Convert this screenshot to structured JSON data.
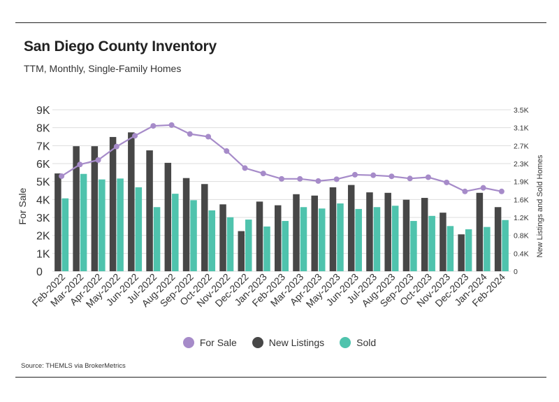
{
  "header": {
    "title": "San Diego County Inventory",
    "subtitle": "TTM, Monthly, Single-Family Homes"
  },
  "footer": {
    "source": "Source:  THEMLS via BrokerMetrics"
  },
  "colors": {
    "for_sale": "#a68bc9",
    "new_listings": "#474747",
    "sold": "#4fc3ad",
    "grid": "#dddddd"
  },
  "legend": [
    {
      "label": "For Sale",
      "color": "#a68bc9"
    },
    {
      "label": "New Listings",
      "color": "#474747"
    },
    {
      "label": "Sold",
      "color": "#4fc3ad"
    }
  ],
  "chart_data": {
    "type": "bar",
    "categories": [
      "Feb-2022",
      "Mar-2022",
      "Apr-2022",
      "May-2022",
      "Jun-2022",
      "Jul-2022",
      "Aug-2022",
      "Sep-2022",
      "Oct-2022",
      "Nov-2022",
      "Dec-2022",
      "Jan-2023",
      "Feb-2023",
      "Mar-2023",
      "Apr-2023",
      "May-2023",
      "Jun-2023",
      "Jul-2023",
      "Aug-2023",
      "Sep-2023",
      "Oct-2023",
      "Nov-2023",
      "Dec-2023",
      "Jan-2024",
      "Feb-2024"
    ],
    "ylabel": "For Sale",
    "y2label": "New Listings and Sold Homes",
    "ylim": [
      0,
      9000
    ],
    "y2lim": [
      0,
      3500
    ],
    "yticks": [
      "0",
      "1K",
      "2K",
      "3K",
      "4K",
      "5K",
      "6K",
      "7K",
      "8K",
      "9K"
    ],
    "y2ticks": [
      "0",
      "0.4K",
      "0.8K",
      "1.2K",
      "1.6K",
      "1.9K",
      "2.3K",
      "2.7K",
      "3.1K",
      "3.5K"
    ],
    "grid": true,
    "legend_position": "bottom",
    "series": [
      {
        "name": "For Sale",
        "kind": "line",
        "axis": "left",
        "values": [
          5300,
          5950,
          6200,
          6950,
          7550,
          8100,
          8150,
          7650,
          7500,
          6700,
          5750,
          5450,
          5150,
          5150,
          5030,
          5130,
          5380,
          5350,
          5290,
          5170,
          5240,
          4950,
          4450,
          4650,
          4450
        ]
      },
      {
        "name": "New Listings",
        "kind": "bar",
        "axis": "right",
        "values": [
          2120,
          2710,
          2710,
          2910,
          3010,
          2620,
          2350,
          2020,
          1890,
          1450,
          870,
          1510,
          1430,
          1670,
          1640,
          1820,
          1870,
          1710,
          1700,
          1550,
          1590,
          1270,
          800,
          1700,
          1390
        ]
      },
      {
        "name": "Sold",
        "kind": "bar",
        "axis": "right",
        "values": [
          1580,
          2110,
          1990,
          2010,
          1820,
          1390,
          1680,
          1540,
          1320,
          1170,
          1120,
          970,
          1090,
          1390,
          1360,
          1470,
          1350,
          1390,
          1420,
          1090,
          1200,
          980,
          910,
          960,
          1110
        ]
      }
    ]
  }
}
